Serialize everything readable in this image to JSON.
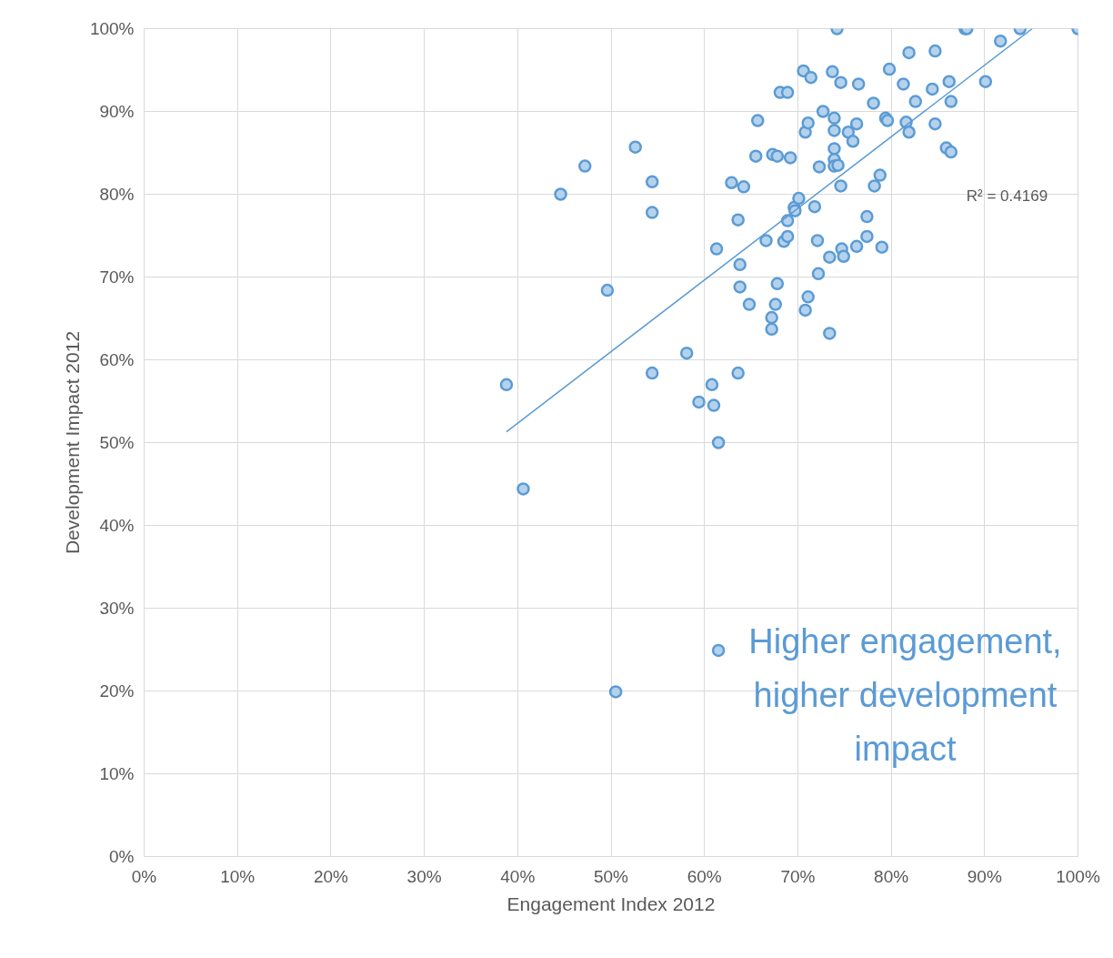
{
  "chart_data": {
    "type": "scatter",
    "xlabel": "Engagement Index 2012",
    "ylabel": "Development Impact 2012",
    "xlim": [
      0,
      100
    ],
    "ylim": [
      0,
      100
    ],
    "xticks": [
      {
        "value": 0,
        "label": "0%"
      },
      {
        "value": 10,
        "label": "10%"
      },
      {
        "value": 20,
        "label": "20%"
      },
      {
        "value": 30,
        "label": "30%"
      },
      {
        "value": 40,
        "label": "40%"
      },
      {
        "value": 50,
        "label": "50%"
      },
      {
        "value": 60,
        "label": "60%"
      },
      {
        "value": 70,
        "label": "70%"
      },
      {
        "value": 80,
        "label": "80%"
      },
      {
        "value": 90,
        "label": "90%"
      },
      {
        "value": 100,
        "label": "100%"
      }
    ],
    "yticks": [
      {
        "value": 0,
        "label": "0%"
      },
      {
        "value": 10,
        "label": "10%"
      },
      {
        "value": 20,
        "label": "20%"
      },
      {
        "value": 30,
        "label": "30%"
      },
      {
        "value": 40,
        "label": "40%"
      },
      {
        "value": 50,
        "label": "50%"
      },
      {
        "value": 60,
        "label": "60%"
      },
      {
        "value": 70,
        "label": "70%"
      },
      {
        "value": 80,
        "label": "80%"
      },
      {
        "value": 90,
        "label": "90%"
      },
      {
        "value": 100,
        "label": "100%"
      }
    ],
    "grid": true,
    "series": [
      {
        "marker": "circle",
        "color": "#5b9bd5",
        "x": [
          38.8,
          40.6,
          44.6,
          47.2,
          49.6,
          50.5,
          52.6,
          54.4,
          54.4,
          54.4,
          58.1,
          59.4,
          60.8,
          61.0,
          61.5,
          61.5,
          61.3,
          62.9,
          63.6,
          63.6,
          63.8,
          63.8,
          64.2,
          64.8,
          65.5,
          65.7,
          66.6,
          67.2,
          67.2,
          67.3,
          67.6,
          67.8,
          67.8,
          68.1,
          68.9,
          68.5,
          68.9,
          68.9,
          69.2,
          69.6,
          69.7,
          70.1,
          70.6,
          70.8,
          70.8,
          71.1,
          71.1,
          71.4,
          71.8,
          72.1,
          72.2,
          72.3,
          72.7,
          73.4,
          73.4,
          73.7,
          73.9,
          73.9,
          73.9,
          73.9,
          73.9,
          74.2,
          74.3,
          74.6,
          74.6,
          74.7,
          74.9,
          75.4,
          75.9,
          76.3,
          76.3,
          76.5,
          77.4,
          77.4,
          78.1,
          78.2,
          78.8,
          79.0,
          79.4,
          79.6,
          79.8,
          81.3,
          81.6,
          81.9,
          81.9,
          82.6,
          84.4,
          84.7,
          84.7,
          85.9,
          86.2,
          86.4,
          86.4,
          87.9,
          88.1,
          90.1,
          91.7,
          93.8,
          100
        ],
        "values": [
          57.0,
          44.4,
          80.0,
          83.4,
          68.4,
          19.9,
          85.7,
          81.5,
          77.8,
          58.4,
          60.8,
          54.9,
          57.0,
          54.5,
          50.0,
          24.9,
          73.4,
          81.4,
          76.9,
          58.4,
          71.5,
          68.8,
          80.9,
          66.7,
          84.6,
          88.9,
          74.4,
          65.1,
          63.7,
          84.8,
          66.7,
          69.2,
          84.6,
          92.3,
          92.3,
          74.3,
          74.9,
          76.8,
          84.4,
          78.4,
          78.0,
          79.5,
          94.9,
          66.0,
          87.5,
          67.6,
          88.6,
          94.1,
          78.5,
          74.4,
          70.4,
          83.3,
          90.0,
          63.2,
          72.4,
          94.8,
          89.2,
          87.7,
          85.5,
          84.2,
          83.4,
          100,
          83.5,
          93.5,
          81.0,
          73.4,
          72.5,
          87.5,
          86.4,
          88.5,
          73.7,
          93.3,
          77.3,
          74.9,
          91.0,
          81.0,
          82.3,
          73.6,
          89.2,
          88.9,
          95.1,
          93.3,
          88.7,
          87.5,
          97.1,
          91.2,
          92.7,
          97.3,
          88.5,
          85.6,
          93.6,
          91.2,
          85.1,
          100,
          100,
          93.6,
          98.5,
          100,
          100
        ]
      },
      {
        "type": "line",
        "marker": "none",
        "color": "#5b9bd5",
        "x": [
          38.8,
          95.1
        ],
        "values": [
          51.3,
          100
        ]
      }
    ],
    "annotations": [
      "R² = 0.4169",
      "Higher engagement, higher development impact"
    ]
  }
}
